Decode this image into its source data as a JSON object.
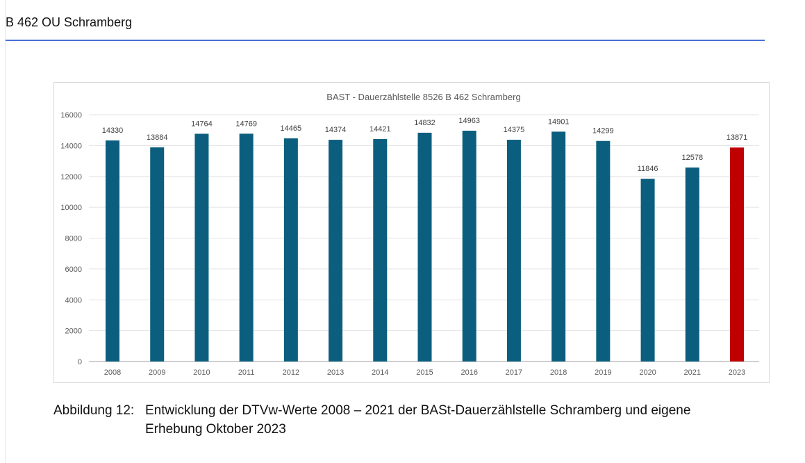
{
  "header": {
    "title": "B 462 OU Schramberg"
  },
  "caption": {
    "label": "Abbildung 12:",
    "line1": "Entwicklung der DTVw-Werte 2008 – 2021 der BASt-Dauerzählstelle Schramberg und eigene",
    "line2": "Erhebung Oktober 2023"
  },
  "chart_data": {
    "type": "bar",
    "title": "BAST - Dauerzählstelle 8526 B 462 Schramberg",
    "xlabel": "",
    "ylabel": "",
    "categories": [
      "2008",
      "2009",
      "2010",
      "2011",
      "2012",
      "2013",
      "2014",
      "2015",
      "2016",
      "2017",
      "2018",
      "2019",
      "2020",
      "2021",
      "2023"
    ],
    "values": [
      14330,
      13884,
      14764,
      14769,
      14465,
      14374,
      14421,
      14832,
      14963,
      14375,
      14901,
      14299,
      11846,
      12578,
      13871
    ],
    "bar_colors": [
      "#0b5e7e",
      "#0b5e7e",
      "#0b5e7e",
      "#0b5e7e",
      "#0b5e7e",
      "#0b5e7e",
      "#0b5e7e",
      "#0b5e7e",
      "#0b5e7e",
      "#0b5e7e",
      "#0b5e7e",
      "#0b5e7e",
      "#0b5e7e",
      "#0b5e7e",
      "#c00000"
    ],
    "ylim": [
      0,
      16000
    ],
    "yticks": [
      0,
      2000,
      4000,
      6000,
      8000,
      10000,
      12000,
      14000,
      16000
    ],
    "grid": true,
    "data_labels": true,
    "legend": "none"
  }
}
